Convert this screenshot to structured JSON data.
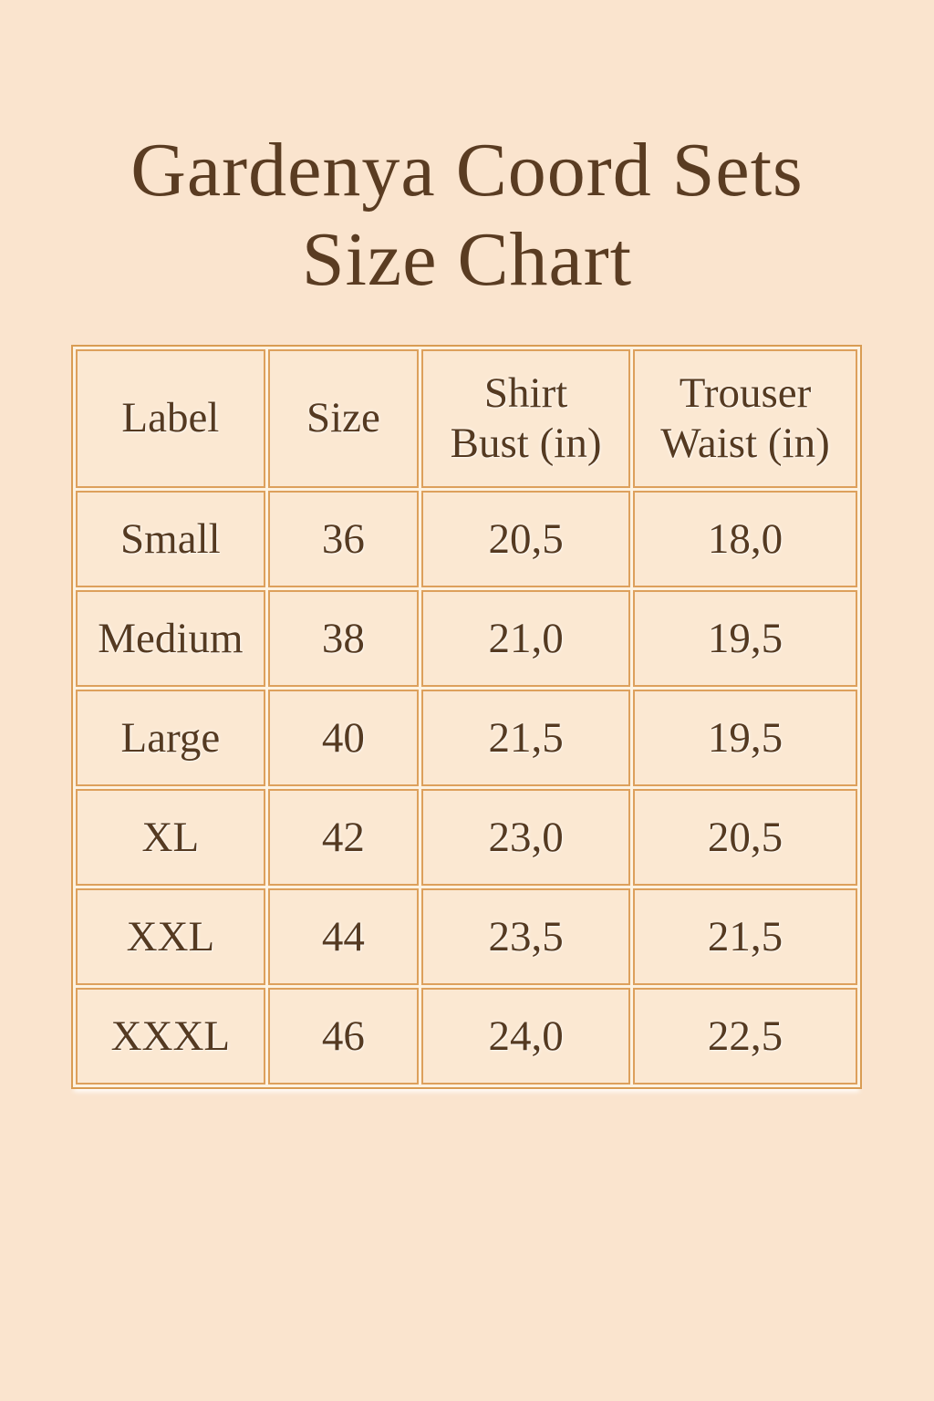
{
  "page": {
    "background_color": "#fae4ce",
    "text_color": "#553a21",
    "border_color": "#dda05c"
  },
  "title": {
    "line1": "Gardenya Coord Sets",
    "line2": "Size Chart"
  },
  "table": {
    "headers": [
      [
        "Label",
        ""
      ],
      [
        "Size",
        ""
      ],
      [
        "Shirt",
        "Bust (in)"
      ],
      [
        "Trouser",
        "Waist (in)"
      ]
    ],
    "rows": [
      [
        "Small",
        "36",
        "20,5",
        "18,0"
      ],
      [
        "Medium",
        "38",
        "21,0",
        "19,5"
      ],
      [
        "Large",
        "40",
        "21,5",
        "19,5"
      ],
      [
        "XL",
        "42",
        "23,0",
        "20,5"
      ],
      [
        "XXL",
        "44",
        "23,5",
        "21,5"
      ],
      [
        "XXXL",
        "46",
        "24,0",
        "22,5"
      ]
    ]
  }
}
